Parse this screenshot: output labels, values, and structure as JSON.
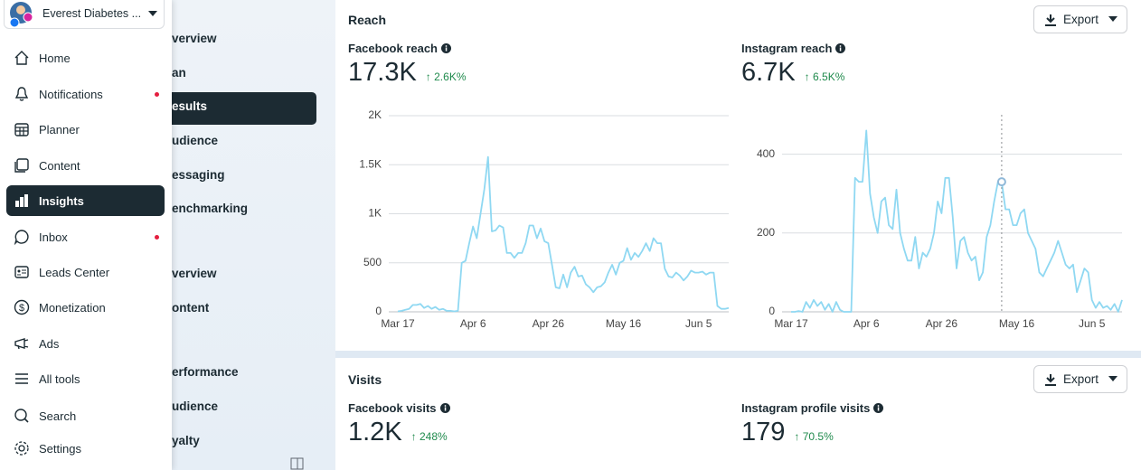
{
  "sidebar": {
    "account": "Everest Diabetes ...",
    "nav": [
      "Home",
      "Notifications",
      "Planner",
      "Content",
      "Insights",
      "Inbox",
      "Leads Center",
      "Monetization",
      "Ads",
      "All tools",
      "Search",
      "Settings"
    ]
  },
  "subnav": [
    "verview",
    "an",
    "esults",
    "udience",
    "essaging",
    "enchmarking",
    "verview",
    "ontent",
    "erformance",
    "udience",
    "yalty"
  ],
  "sections": [
    {
      "title": "Reach",
      "export": "Export",
      "metrics": [
        {
          "label": "Facebook reach",
          "value": "17.3K",
          "change": "↑ 2.6K%"
        },
        {
          "label": "Instagram reach",
          "value": "6.7K",
          "change": "↑ 6.5K%"
        }
      ]
    },
    {
      "title": "Visits",
      "export": "Export",
      "metrics": [
        {
          "label": "Facebook visits",
          "value": "1.2K",
          "change": "↑ 248%"
        },
        {
          "label": "Instagram profile visits",
          "value": "179",
          "change": "↑ 70.5%"
        }
      ]
    }
  ],
  "chart_data": [
    {
      "type": "line",
      "categories": [
        "Mar 17",
        null,
        null,
        null,
        null,
        null,
        null,
        null,
        null,
        null,
        null,
        null,
        null,
        null,
        null,
        null,
        null,
        null,
        null,
        null,
        "Apr 6",
        null,
        null,
        null,
        null,
        null,
        null,
        null,
        null,
        null,
        null,
        null,
        null,
        null,
        null,
        null,
        null,
        null,
        null,
        null,
        "Apr 26",
        null,
        null,
        null,
        null,
        null,
        null,
        null,
        null,
        null,
        null,
        null,
        null,
        null,
        null,
        null,
        null,
        null,
        null,
        null,
        "May 16",
        null,
        null,
        null,
        null,
        null,
        null,
        null,
        null,
        null,
        null,
        null,
        null,
        null,
        null,
        null,
        null,
        null,
        null,
        null,
        "Jun 5",
        null,
        null,
        null,
        null,
        null,
        null,
        null,
        null
      ],
      "values": [
        5,
        10,
        20,
        30,
        70,
        70,
        80,
        40,
        60,
        30,
        50,
        20,
        30,
        10,
        10,
        5,
        10,
        500,
        520,
        700,
        870,
        750,
        1000,
        1250,
        1580,
        820,
        830,
        880,
        860,
        600,
        600,
        550,
        600,
        600,
        700,
        880,
        880,
        750,
        850,
        720,
        700,
        480,
        250,
        240,
        380,
        250,
        400,
        460,
        360,
        370,
        280,
        250,
        200,
        250,
        260,
        300,
        400,
        480,
        380,
        500,
        520,
        650,
        530,
        600,
        560,
        620,
        700,
        620,
        750,
        700,
        700,
        440,
        360,
        350,
        400,
        370,
        320,
        360,
        420,
        400,
        400,
        410,
        380,
        400,
        400,
        60,
        30,
        30,
        40
      ],
      "color": "#8fd8f2",
      "ylim": [
        0,
        2000
      ],
      "yticks": [
        0,
        500,
        {
          "value": 1000,
          "label": "1K"
        },
        {
          "value": 1500,
          "label": "1.5K"
        },
        {
          "value": 2000,
          "label": "2K"
        }
      ],
      "grid": true
    },
    {
      "type": "line",
      "categories": [
        "Mar 17",
        null,
        null,
        null,
        null,
        null,
        null,
        null,
        null,
        null,
        null,
        null,
        null,
        null,
        null,
        null,
        null,
        null,
        null,
        null,
        "Apr 6",
        null,
        null,
        null,
        null,
        null,
        null,
        null,
        null,
        null,
        null,
        null,
        null,
        null,
        null,
        null,
        null,
        null,
        null,
        null,
        "Apr 26",
        null,
        null,
        null,
        null,
        null,
        null,
        null,
        null,
        null,
        null,
        null,
        null,
        null,
        null,
        null,
        null,
        null,
        null,
        null,
        "May 16",
        null,
        null,
        null,
        null,
        null,
        null,
        null,
        null,
        null,
        null,
        null,
        null,
        null,
        null,
        null,
        null,
        null,
        null,
        null,
        "Jun 5",
        null,
        null,
        null,
        null,
        null,
        null,
        null,
        null
      ],
      "values": [
        0,
        0,
        2,
        0,
        25,
        10,
        30,
        15,
        25,
        5,
        20,
        0,
        25,
        5,
        0,
        0,
        0,
        340,
        330,
        330,
        460,
        300,
        240,
        200,
        280,
        290,
        220,
        210,
        310,
        200,
        160,
        130,
        130,
        190,
        110,
        150,
        140,
        160,
        200,
        280,
        250,
        340,
        340,
        240,
        110,
        180,
        190,
        150,
        130,
        140,
        80,
        100,
        190,
        220,
        280,
        330,
        330,
        260,
        260,
        220,
        220,
        250,
        260,
        200,
        180,
        160,
        100,
        90,
        110,
        130,
        150,
        180,
        150,
        120,
        110,
        120,
        50,
        80,
        110,
        100,
        30,
        10,
        25,
        10,
        15,
        5,
        20,
        0,
        30
      ],
      "color": "#8fd8f2",
      "ylim": [
        0,
        500
      ],
      "yticks": [
        0,
        200,
        400
      ],
      "grid": true
    }
  ]
}
